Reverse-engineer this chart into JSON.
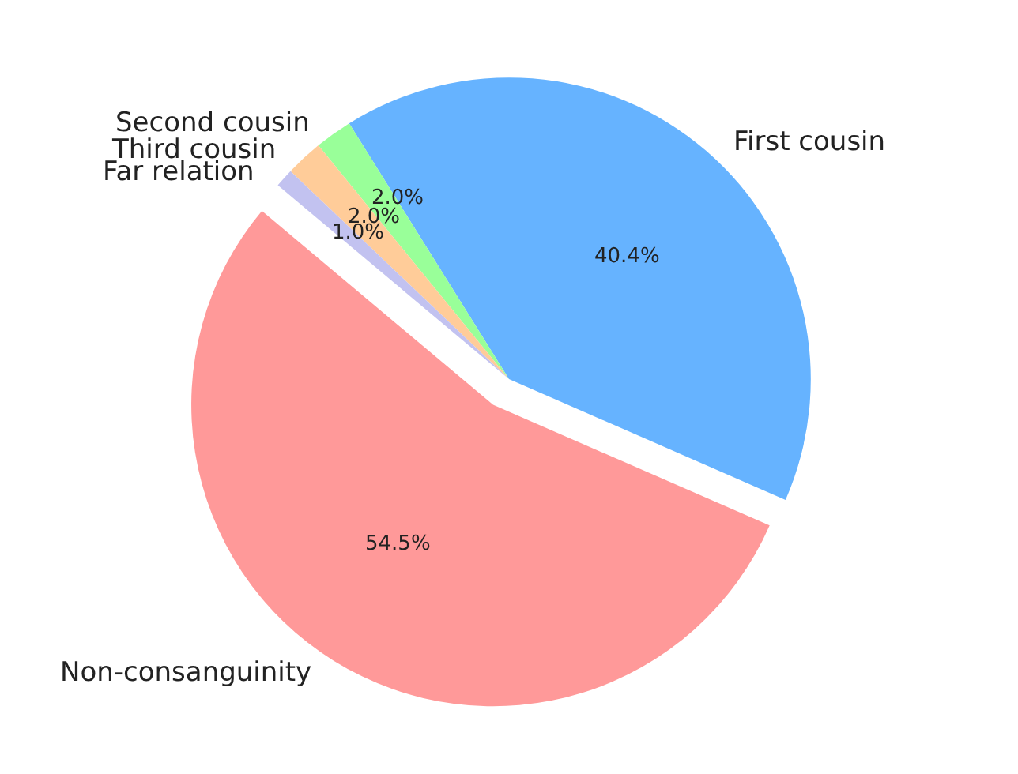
{
  "chart_data": {
    "type": "pie",
    "categories": [
      "Non-consanguinity",
      "First cousin",
      "Second cousin",
      "Third cousin",
      "Far relation"
    ],
    "values": [
      54.5,
      40.4,
      2.0,
      2.0,
      1.0
    ],
    "value_labels": [
      "54.5%",
      "40.4%",
      "2.0%",
      "2.0%",
      "1.0%"
    ],
    "colors": [
      "#ff9999",
      "#66b3ff",
      "#99ff99",
      "#ffcc99",
      "#c2c2f0"
    ],
    "legend": false
  }
}
